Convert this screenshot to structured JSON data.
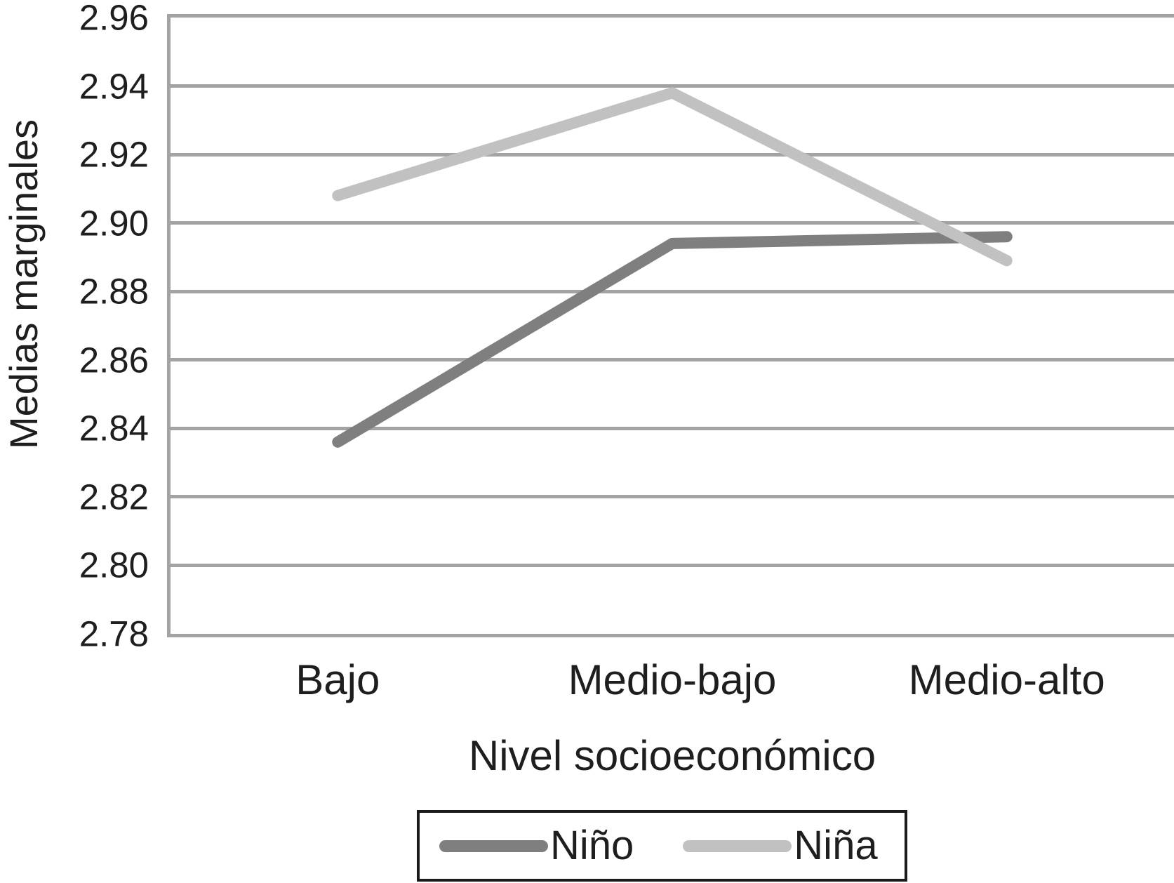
{
  "chart_data": {
    "type": "line",
    "categories": [
      "Bajo",
      "Medio-bajo",
      "Medio-alto"
    ],
    "series": [
      {
        "name": "Niño",
        "values": [
          2.836,
          2.894,
          2.896
        ],
        "color": "#7f7f7f"
      },
      {
        "name": "Niña",
        "values": [
          2.908,
          2.938,
          2.889
        ],
        "color": "#c1c1c1"
      }
    ],
    "xlabel": "Nivel socioeconómico",
    "ylabel": "Medias marginales",
    "ylim": [
      2.78,
      2.96
    ],
    "ytick_step": 0.02,
    "yticks": [
      "2.96",
      "2.94",
      "2.92",
      "2.90",
      "2.88",
      "2.86",
      "2.84",
      "2.82",
      "2.80",
      "2.78"
    ],
    "grid": "horizontal",
    "legend_position": "bottom",
    "line_width": 16
  },
  "colors": {
    "grid": "#a3a3a3",
    "text": "#1e1e1e",
    "legend_border": "#1b1b1b",
    "background": "#ffffff"
  }
}
